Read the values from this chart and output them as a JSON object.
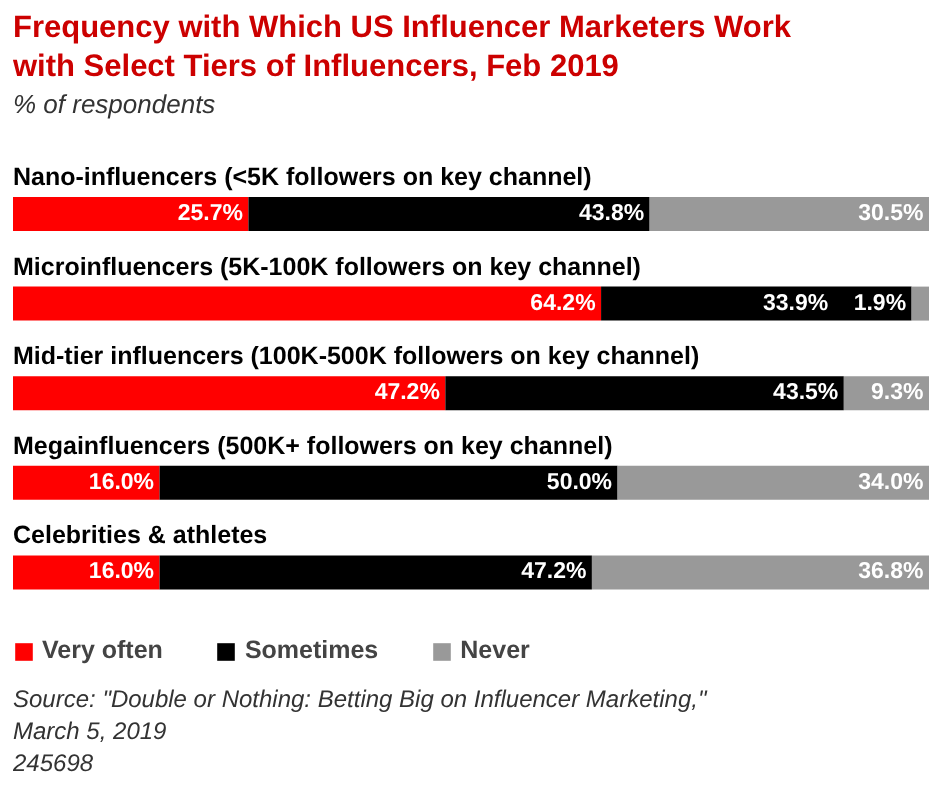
{
  "chart_data": {
    "type": "bar",
    "orientation": "horizontal",
    "stacked": true,
    "title": "Frequency with Which US Influencer Marketers Work with Select Tiers of Influencers, Feb 2019",
    "subtitle": "% of respondents",
    "categories": [
      "Nano-influencers (<5K followers on key channel)",
      "Microinfluencers (5K-100K followers on key channel)",
      "Mid-tier influencers (100K-500K followers on key channel)",
      "Megainfluencers (500K+ followers on key channel)",
      "Celebrities & athletes"
    ],
    "series": [
      {
        "name": "Very often",
        "color": "#ff0000",
        "values": [
          25.7,
          64.2,
          47.2,
          16.0,
          16.0
        ],
        "value_labels": [
          "25.7%",
          "64.2%",
          "47.2%",
          "16.0%",
          "16.0%"
        ]
      },
      {
        "name": "Sometimes",
        "color": "#000000",
        "values": [
          43.8,
          33.9,
          43.5,
          50.0,
          47.2
        ],
        "value_labels": [
          "43.8%",
          "33.9%",
          "43.5%",
          "50.0%",
          "47.2%"
        ]
      },
      {
        "name": "Never",
        "color": "#999999",
        "values": [
          30.5,
          1.9,
          9.3,
          34.0,
          36.8
        ],
        "value_labels": [
          "30.5%",
          "1.9%",
          "9.3%",
          "34.0%",
          "36.8%"
        ]
      }
    ],
    "legend": "bottom left",
    "annotations": [
      "Source: \"Double or Nothing: Betting Big on Influencer Marketing,\" March 5, 2019",
      "245698"
    ]
  }
}
